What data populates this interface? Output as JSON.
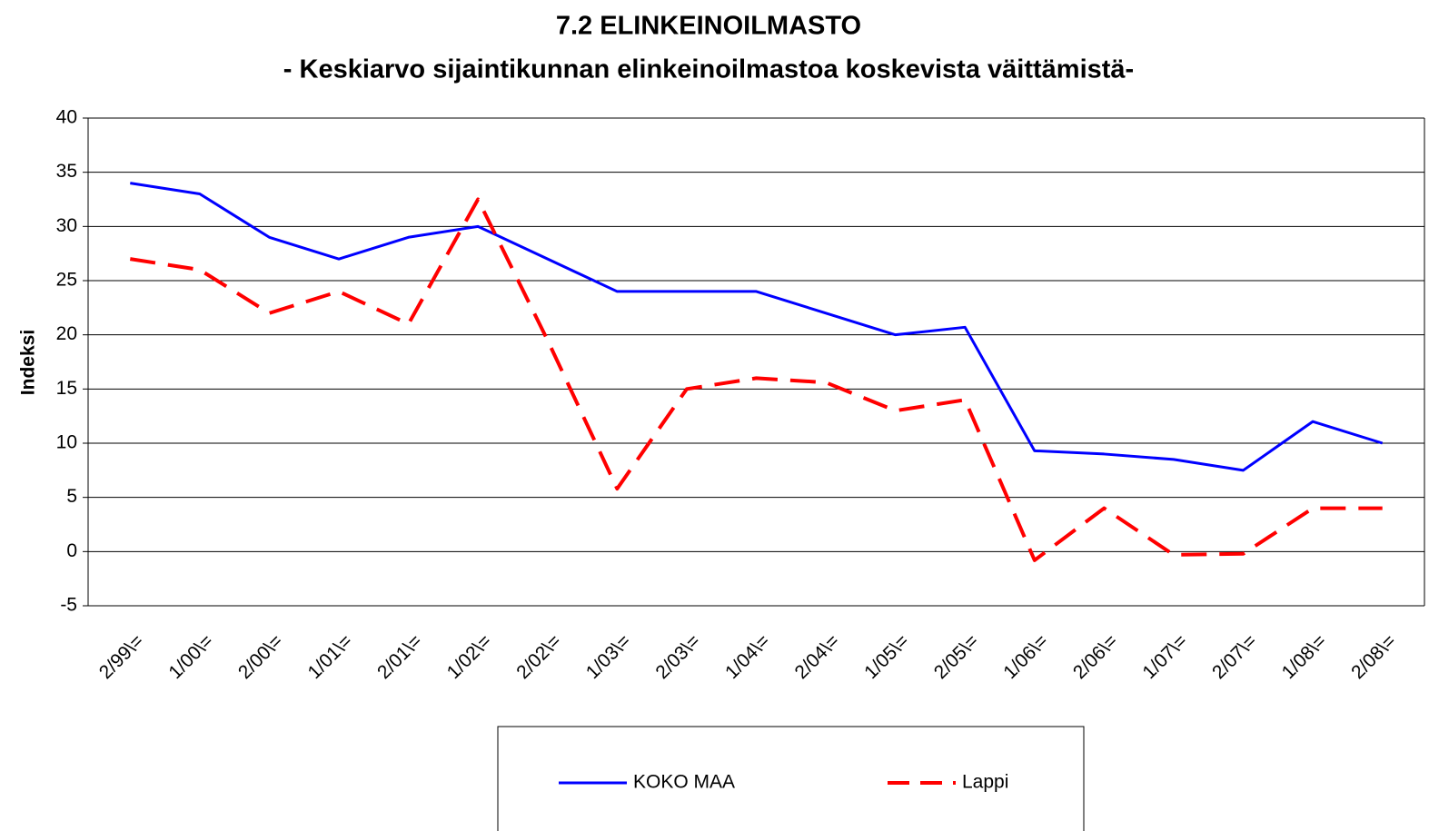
{
  "chart_data": {
    "type": "line",
    "title": "7.2 ELINKEINOILMASTO",
    "subtitle": "- Keskiarvo sijaintikunnan elinkeinoilmastoa koskevista väittämistä-",
    "y_label": "Indeksi",
    "categories": [
      "2/99\\=",
      "1/00\\=",
      "2/00\\=",
      "1/01\\=",
      "2/01\\=",
      "1/02\\=",
      "2/02\\=",
      "1/03\\=",
      "2/03\\=",
      "1/04\\=",
      "2/04\\=",
      "1/05\\=",
      "2/05\\=",
      "1/06\\=",
      "2/06\\=",
      "1/07\\=",
      "2/07\\=",
      "1/08\\=",
      "2/08\\="
    ],
    "series": [
      {
        "name": "KOKO MAA",
        "color": "#0000ff",
        "dashed": false,
        "values": [
          34,
          33,
          29,
          27,
          29,
          30,
          27,
          24,
          24,
          24,
          22,
          20,
          20.7,
          9.3,
          9,
          8.5,
          7.5,
          12,
          10
        ]
      },
      {
        "name": "Lappi",
        "color": "#ff0000",
        "dashed": true,
        "values": [
          27,
          26,
          22,
          24,
          21,
          32.5,
          19.5,
          5.8,
          15,
          16,
          15.6,
          13,
          14,
          -0.8,
          4,
          -0.3,
          -0.2,
          4,
          4
        ]
      }
    ],
    "ylim": [
      -5,
      40
    ],
    "yticks": [
      -5,
      0,
      5,
      10,
      15,
      20,
      25,
      30,
      35,
      40
    ],
    "grid": true,
    "legend": "bottom"
  }
}
